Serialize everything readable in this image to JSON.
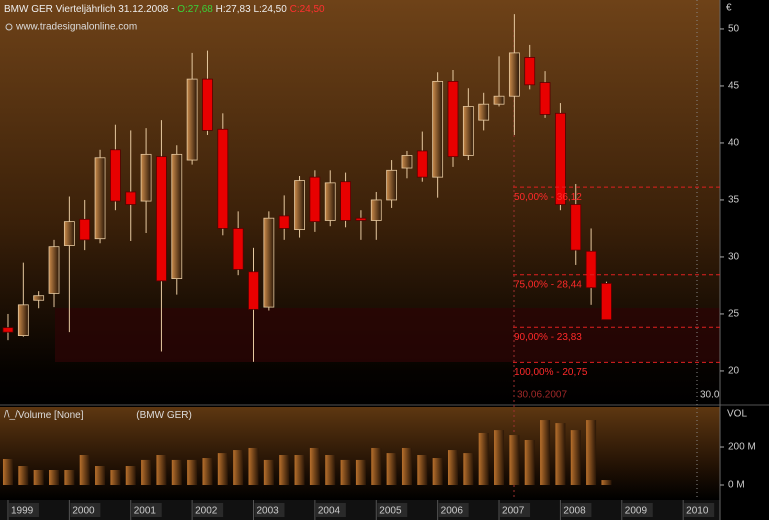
{
  "chart_data": [
    {
      "type": "candlestick",
      "header": {
        "symbol": "BMW GER Vierteljährlich",
        "date": "31.12.2008",
        "open": "O:27,68",
        "high": "H:27,83",
        "low": "L:24,50",
        "close": "C:24,50"
      },
      "source": "www.tradesignalonline.com",
      "unit": "€",
      "axis_note": "30.0",
      "x": [
        1999,
        1999.25,
        1999.5,
        1999.75,
        2000,
        2000.25,
        2000.5,
        2000.75,
        2001,
        2001.25,
        2001.5,
        2001.75,
        2002,
        2002.25,
        2002.5,
        2002.75,
        2003,
        2003.25,
        2003.5,
        2003.75,
        2004,
        2004.25,
        2004.5,
        2004.75,
        2005,
        2005.25,
        2005.5,
        2005.75,
        2006,
        2006.25,
        2006.5,
        2006.75,
        2007,
        2007.25,
        2007.5,
        2007.75,
        2008,
        2008.25,
        2008.5,
        2008.75
      ],
      "open": [
        23.8,
        23.1,
        26.2,
        26.8,
        31.0,
        33.3,
        31.6,
        39.4,
        35.7,
        34.9,
        38.8,
        28.1,
        38.5,
        45.6,
        41.2,
        32.5,
        28.7,
        25.6,
        33.6,
        32.4,
        37.0,
        33.2,
        36.6,
        33.4,
        33.2,
        35.0,
        37.8,
        39.3,
        37.0,
        45.4,
        38.9,
        42.0,
        43.4,
        44.1,
        47.5,
        45.3,
        42.6,
        34.6,
        30.5,
        27.68
      ],
      "high": [
        25.0,
        29.5,
        27.0,
        31.5,
        35.3,
        35.0,
        39.4,
        41.6,
        41.1,
        41.3,
        42.0,
        39.8,
        47.9,
        48.1,
        42.6,
        34.0,
        30.8,
        34.0,
        35.4,
        37.1,
        37.6,
        37.6,
        37.4,
        34.1,
        35.7,
        38.5,
        39.3,
        41.0,
        46.2,
        46.4,
        44.8,
        44.4,
        47.6,
        51.3,
        48.6,
        46.3,
        43.5,
        36.4,
        32.5,
        27.83
      ],
      "low": [
        22.7,
        23.0,
        25.5,
        25.6,
        23.4,
        30.6,
        31.2,
        34.1,
        31.4,
        32.1,
        21.7,
        26.7,
        38.1,
        40.7,
        31.9,
        28.4,
        20.8,
        25.3,
        31.5,
        31.7,
        32.2,
        32.7,
        32.6,
        31.5,
        31.5,
        34.3,
        36.9,
        36.6,
        35.2,
        37.9,
        38.5,
        41.1,
        43.2,
        40.7,
        44.7,
        42.2,
        34.1,
        29.3,
        25.8,
        24.5
      ],
      "close": [
        23.4,
        25.8,
        26.6,
        30.9,
        33.1,
        31.5,
        38.7,
        34.9,
        34.6,
        39.0,
        27.9,
        39.0,
        45.6,
        41.1,
        32.5,
        28.9,
        25.4,
        33.4,
        32.5,
        36.7,
        33.1,
        36.5,
        33.2,
        33.2,
        35.0,
        37.6,
        38.9,
        37.0,
        45.4,
        38.8,
        43.2,
        43.4,
        44.1,
        47.9,
        45.1,
        42.5,
        34.6,
        30.6,
        27.3,
        24.5
      ],
      "colors": {
        "up": "#c98a4a",
        "down": "#e80000",
        "wick": "#e6c9a0"
      },
      "fib_levels": [
        {
          "label": "50,00% - 36,12",
          "value": 36.12
        },
        {
          "label": "75,00% - 28,44",
          "value": 28.44
        },
        {
          "label": "90,00% - 23,83",
          "value": 23.83
        },
        {
          "label": "100,00% - 20,75",
          "value": 20.75
        }
      ],
      "fib_date": "30.06.2007",
      "xlim": [
        1998.87,
        2010.6
      ],
      "ylim": [
        17.1,
        52.54
      ],
      "yticks": [
        20,
        25,
        30,
        35,
        40,
        45,
        50
      ]
    },
    {
      "type": "bar",
      "indicator": "Volume [None]",
      "instrument": "(BMW GER)",
      "y_label": "VOL",
      "x": [
        1999,
        1999.25,
        1999.5,
        1999.75,
        2000,
        2000.25,
        2000.5,
        2000.75,
        2001,
        2001.25,
        2001.5,
        2001.75,
        2002,
        2002.25,
        2002.5,
        2002.75,
        2003,
        2003.25,
        2003.5,
        2003.75,
        2004,
        2004.25,
        2004.5,
        2004.75,
        2005,
        2005.25,
        2005.5,
        2005.75,
        2006,
        2006.25,
        2006.5,
        2006.75,
        2007,
        2007.25,
        2007.5,
        2007.75,
        2008,
        2008.25,
        2008.5,
        2008.75
      ],
      "values": [
        137,
        100,
        79,
        79,
        79,
        158,
        100,
        79,
        100,
        132,
        158,
        132,
        132,
        142,
        168,
        184,
        195,
        132,
        158,
        158,
        195,
        158,
        132,
        132,
        195,
        168,
        195,
        158,
        142,
        184,
        168,
        274,
        289,
        263,
        237,
        342,
        326,
        289,
        342,
        26
      ],
      "color": "#b8702c",
      "xlim": [
        1998.87,
        2010.6
      ],
      "ylim": [
        -79,
        416
      ],
      "yticks": [
        {
          "value": 0,
          "label": "0 M"
        },
        {
          "value": 200,
          "label": "200 M"
        }
      ],
      "xticks": [
        1999,
        2000,
        2001,
        2002,
        2003,
        2004,
        2005,
        2006,
        2007,
        2008,
        2009,
        2010
      ]
    }
  ]
}
